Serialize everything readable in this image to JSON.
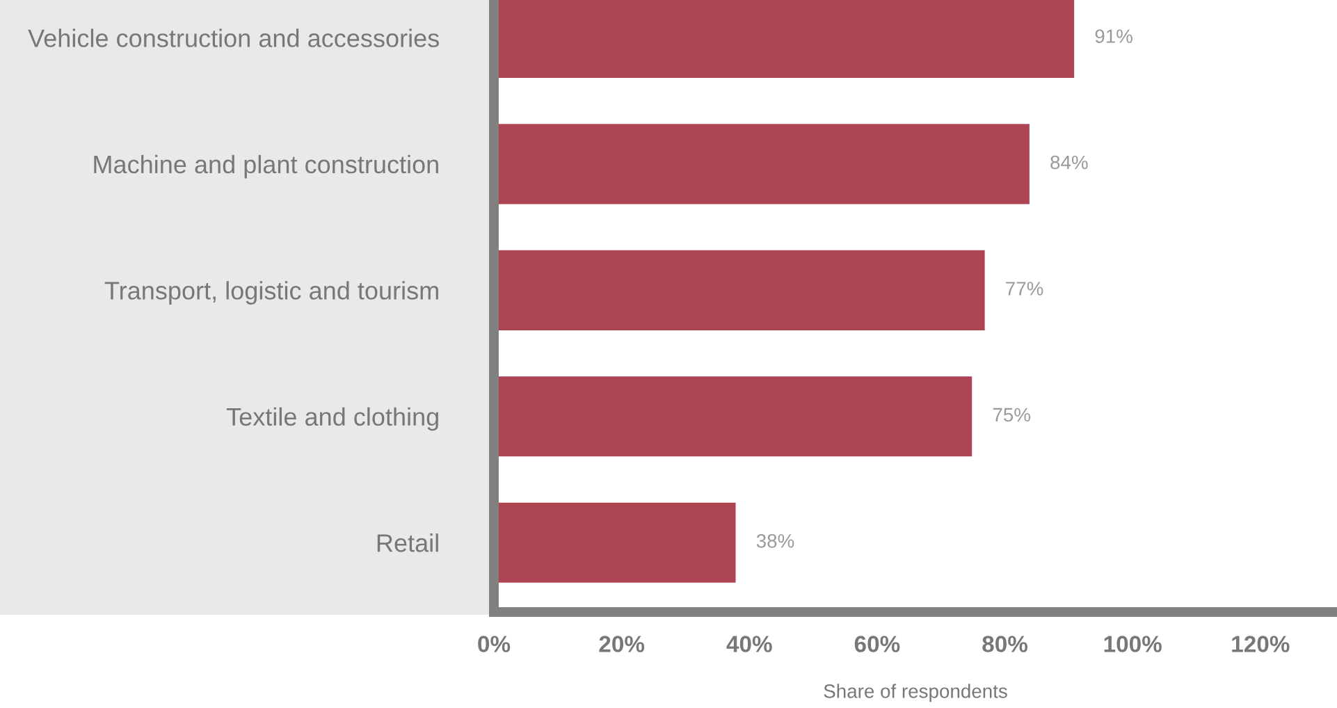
{
  "chart_data": {
    "type": "bar",
    "orientation": "horizontal",
    "categories": [
      "Vehicle construction and accessories",
      "Machine and plant construction",
      "Transport, logistic and tourism",
      "Textile and clothing",
      "Retail"
    ],
    "values": [
      91,
      84,
      77,
      75,
      38
    ],
    "value_labels": [
      "91%",
      "84%",
      "77%",
      "75%",
      "38%"
    ],
    "color": "#ad4454",
    "xlabel": "Share of respondents",
    "xlim": [
      0,
      132
    ],
    "xticks": [
      {
        "value": 0,
        "label": "0%"
      },
      {
        "value": 20,
        "label": "20%"
      },
      {
        "value": 40,
        "label": "40%"
      },
      {
        "value": 60,
        "label": "60%"
      },
      {
        "value": 80,
        "label": "80%"
      },
      {
        "value": 100,
        "label": "100%"
      },
      {
        "value": 120,
        "label": "120%"
      }
    ],
    "grid": false
  }
}
